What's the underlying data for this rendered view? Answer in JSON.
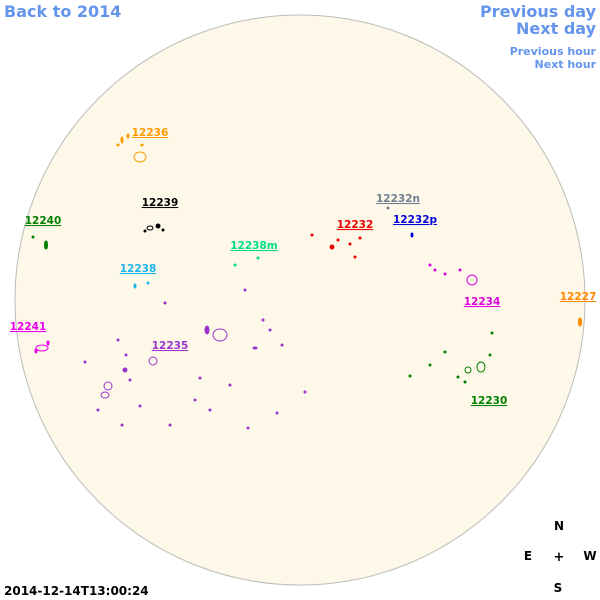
{
  "header": {
    "back_link": "Back to 2014",
    "prev_day": "Previous day",
    "next_day": "Next day",
    "prev_hour": "Previous hour",
    "next_hour": "Next hour"
  },
  "regions": [
    {
      "label": "12236",
      "color": "#ff9900"
    },
    {
      "label": "12239",
      "color": "#000000"
    },
    {
      "label": "12240",
      "color": "#008000"
    },
    {
      "label": "12238m",
      "color": "#00dd88"
    },
    {
      "label": "12238",
      "color": "#1eb4f0"
    },
    {
      "label": "12241",
      "color": "#ee00ee"
    },
    {
      "label": "12235",
      "color": "#9933cc"
    },
    {
      "label": "12232n",
      "color": "#708090"
    },
    {
      "label": "12232",
      "color": "#ee0000"
    },
    {
      "label": "12232p",
      "color": "#0000dd"
    },
    {
      "label": "12234",
      "color": "#dd00dd"
    },
    {
      "label": "12227",
      "color": "#ff8800"
    },
    {
      "label": "12230",
      "color": "#008000"
    }
  ],
  "compass": {
    "north": "N",
    "east": "E",
    "center": "+",
    "west": "W",
    "south": "S"
  },
  "timestamp": "2014-12-14T13:00:24"
}
